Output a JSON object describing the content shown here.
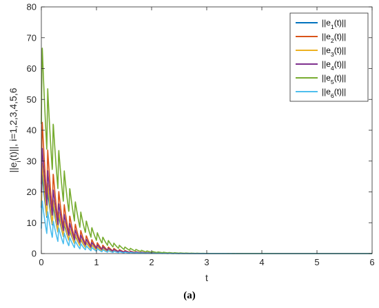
{
  "caption": "(a)",
  "chart_data": {
    "type": "line",
    "title": "",
    "xlabel": "t",
    "ylabel": "||e_i(t)||, i=1,2,3,4,5,6",
    "xlim": [
      0,
      6
    ],
    "ylim": [
      0,
      80
    ],
    "xticks": [
      0,
      1,
      2,
      3,
      4,
      5,
      6
    ],
    "yticks": [
      0,
      10,
      20,
      30,
      40,
      50,
      60,
      70,
      80
    ],
    "grid": false,
    "legend": "top-right",
    "series": [
      {
        "name": "||e_1(t)||",
        "color": "#0072BD",
        "peak": 27,
        "dip_ratio": 0.55,
        "decay": 2.5
      },
      {
        "name": "||e_2(t)||",
        "color": "#D95319",
        "peak": 45,
        "dip_ratio": 0.5,
        "decay": 2.5
      },
      {
        "name": "||e_3(t)||",
        "color": "#EDB120",
        "peak": 31,
        "dip_ratio": 0.5,
        "decay": 2.6
      },
      {
        "name": "||e_4(t)||",
        "color": "#7E2F8E",
        "peak": 36,
        "dip_ratio": 0.55,
        "decay": 2.5
      },
      {
        "name": "||e_5(t)||",
        "color": "#77AC30",
        "peak": 70,
        "dip_ratio": 0.6,
        "decay": 2.3
      },
      {
        "name": "||e_6(t)||",
        "color": "#4DBEEE",
        "peak": 18,
        "dip_ratio": 0.45,
        "decay": 2.4
      }
    ]
  }
}
